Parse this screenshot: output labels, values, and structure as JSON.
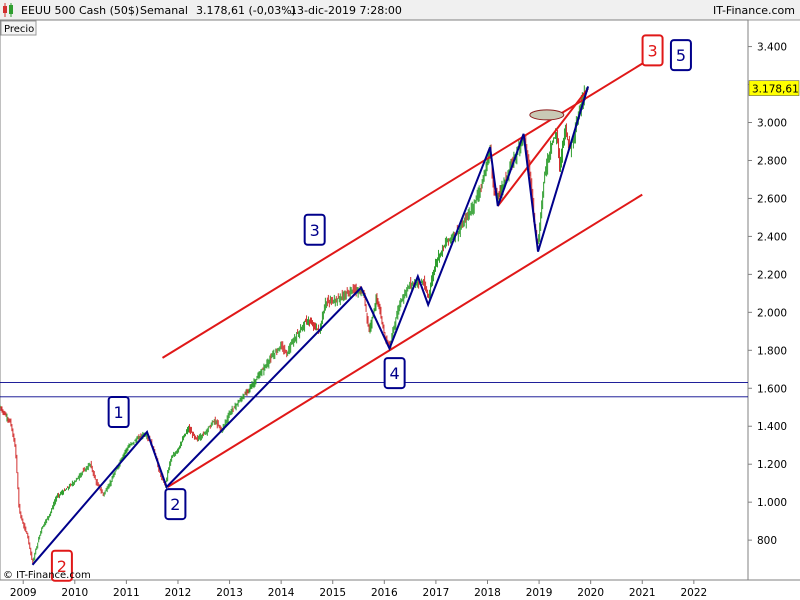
{
  "header": {
    "instrument": "EEUU 500 Cash (50$)",
    "timeframe": "Semanal",
    "last_change": "3.178,61 (-0,03%)",
    "datetime": "13-dic-2019 7:28:00",
    "site": "IT-Finance.com"
  },
  "panel_label": "Precio",
  "watermark": "© IT-Finance.com",
  "price_tag": "3.178,61",
  "colors": {
    "up_candle": "#2f9e2f",
    "down_candle": "#d23030",
    "wave_line": "#00008b",
    "channel_line": "#e01818",
    "grid_line": "#00008b",
    "price_tag_bg": "#ffff00"
  },
  "chart_data": {
    "type": "line",
    "title": "",
    "xlabel": "",
    "ylabel": "",
    "scale": "linear",
    "x_ticks": [
      "2009",
      "2010",
      "2011",
      "2012",
      "2013",
      "2014",
      "2015",
      "2016",
      "2017",
      "2018",
      "2019",
      "2020",
      "2021",
      "2022"
    ],
    "y_ticks": [
      800,
      1000,
      1200,
      1400,
      1600,
      1800,
      2000,
      2200,
      2400,
      2600,
      2800,
      3000,
      3200,
      3400
    ],
    "y_tick_labels": [
      "800",
      "1.000",
      "1.200",
      "1.400",
      "1.600",
      "1.800",
      "2.000",
      "2.200",
      "2.400",
      "2.600",
      "2.800",
      "3.000",
      "3.200",
      "3.400"
    ],
    "xlim": [
      2008.55,
      2023.05
    ],
    "ylim": [
      590,
      3540
    ],
    "last_price": 3178.61,
    "horizontal_levels": [
      1630,
      1555
    ],
    "price_path": [
      [
        2008.55,
        1500
      ],
      [
        2008.75,
        1420
      ],
      [
        2008.85,
        1280
      ],
      [
        2008.92,
        960
      ],
      [
        2009.0,
        880
      ],
      [
        2009.08,
        830
      ],
      [
        2009.18,
        680
      ],
      [
        2009.35,
        860
      ],
      [
        2009.5,
        930
      ],
      [
        2009.65,
        1030
      ],
      [
        2009.8,
        1060
      ],
      [
        2010.0,
        1110
      ],
      [
        2010.15,
        1160
      ],
      [
        2010.3,
        1200
      ],
      [
        2010.42,
        1100
      ],
      [
        2010.55,
        1040
      ],
      [
        2010.7,
        1110
      ],
      [
        2010.85,
        1200
      ],
      [
        2011.0,
        1280
      ],
      [
        2011.15,
        1320
      ],
      [
        2011.25,
        1340
      ],
      [
        2011.35,
        1360
      ],
      [
        2011.45,
        1330
      ],
      [
        2011.55,
        1260
      ],
      [
        2011.65,
        1150
      ],
      [
        2011.75,
        1090
      ],
      [
        2011.85,
        1220
      ],
      [
        2012.0,
        1280
      ],
      [
        2012.2,
        1390
      ],
      [
        2012.35,
        1330
      ],
      [
        2012.5,
        1360
      ],
      [
        2012.7,
        1430
      ],
      [
        2012.85,
        1380
      ],
      [
        2013.0,
        1470
      ],
      [
        2013.3,
        1570
      ],
      [
        2013.5,
        1640
      ],
      [
        2013.75,
        1740
      ],
      [
        2014.0,
        1830
      ],
      [
        2014.1,
        1780
      ],
      [
        2014.3,
        1880
      ],
      [
        2014.5,
        1960
      ],
      [
        2014.75,
        1900
      ],
      [
        2014.85,
        2050
      ],
      [
        2015.1,
        2070
      ],
      [
        2015.4,
        2120
      ],
      [
        2015.6,
        2100
      ],
      [
        2015.7,
        1900
      ],
      [
        2015.85,
        2080
      ],
      [
        2016.0,
        1880
      ],
      [
        2016.1,
        1820
      ],
      [
        2016.3,
        2050
      ],
      [
        2016.5,
        2150
      ],
      [
        2016.75,
        2160
      ],
      [
        2016.85,
        2080
      ],
      [
        2017.0,
        2270
      ],
      [
        2017.2,
        2370
      ],
      [
        2017.45,
        2430
      ],
      [
        2017.7,
        2550
      ],
      [
        2017.9,
        2680
      ],
      [
        2018.05,
        2860
      ],
      [
        2018.12,
        2640
      ],
      [
        2018.2,
        2610
      ],
      [
        2018.35,
        2700
      ],
      [
        2018.5,
        2800
      ],
      [
        2018.7,
        2930
      ],
      [
        2018.8,
        2780
      ],
      [
        2018.9,
        2500
      ],
      [
        2018.98,
        2350
      ],
      [
        2019.1,
        2720
      ],
      [
        2019.25,
        2900
      ],
      [
        2019.35,
        2940
      ],
      [
        2019.4,
        2750
      ],
      [
        2019.5,
        2980
      ],
      [
        2019.6,
        2860
      ],
      [
        2019.75,
        3020
      ],
      [
        2019.85,
        3140
      ],
      [
        2019.95,
        3178.61
      ]
    ],
    "wave_lines": [
      [
        [
          2009.18,
          670
        ],
        [
          2011.4,
          1370
        ],
        [
          2011.78,
          1080
        ],
        [
          2015.55,
          2130
        ],
        [
          2016.1,
          1810
        ],
        [
          2016.65,
          2190
        ],
        [
          2016.85,
          2040
        ],
        [
          2018.05,
          2870
        ],
        [
          2018.2,
          2560
        ],
        [
          2018.7,
          2940
        ],
        [
          2018.98,
          2320
        ],
        [
          2019.95,
          3190
        ]
      ]
    ],
    "channel_lines": [
      [
        [
          2011.7,
          1760
        ],
        [
          2021.0,
          3310
        ]
      ],
      [
        [
          2011.8,
          1080
        ],
        [
          2021.0,
          2620
        ]
      ],
      [
        [
          2018.2,
          2560
        ],
        [
          2019.95,
          3180
        ]
      ]
    ],
    "ellipse_marker": {
      "x": 2019.15,
      "y": 3040
    },
    "annotations": [
      {
        "label": "1",
        "x": 2010.85,
        "y": 1475,
        "color": "#00008b"
      },
      {
        "label": "2",
        "x": 2011.95,
        "y": 990,
        "color": "#00008b"
      },
      {
        "label": "3",
        "x": 2014.65,
        "y": 2435,
        "color": "#00008b"
      },
      {
        "label": "4",
        "x": 2016.2,
        "y": 1680,
        "color": "#00008b"
      },
      {
        "label": "5",
        "x": 2021.75,
        "y": 3355,
        "color": "#00008b"
      },
      {
        "label": "3",
        "x": 2021.2,
        "y": 3380,
        "color": "#e01818"
      },
      {
        "label": "2",
        "x": 2009.75,
        "y": 665,
        "color": "#e01818"
      }
    ]
  }
}
